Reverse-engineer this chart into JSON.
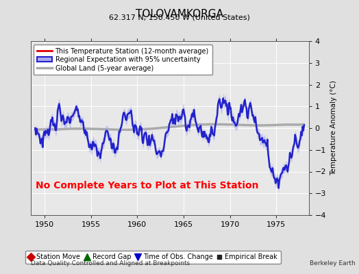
{
  "title": "TOLOVAMKORGA",
  "subtitle": "62.317 N, 150.450 W (United States)",
  "xlabel_bottom": "Data Quality Controlled and Aligned at Breakpoints",
  "xlabel_right": "Berkeley Earth",
  "ylabel": "Temperature Anomaly (°C)",
  "xlim": [
    1948.5,
    1978.5
  ],
  "ylim": [
    -4,
    4
  ],
  "xticks": [
    1950,
    1955,
    1960,
    1965,
    1970,
    1975
  ],
  "yticks": [
    -4,
    -3,
    -2,
    -1,
    0,
    1,
    2,
    3,
    4
  ],
  "no_data_text": "No Complete Years to Plot at This Station",
  "legend_entries": [
    {
      "label": "This Temperature Station (12-month average)",
      "color": "#dd0000",
      "lw": 1.5
    },
    {
      "label": "Regional Expectation with 95% uncertainty",
      "color": "#2222cc",
      "lw": 1.8
    },
    {
      "label": "Global Land (5-year average)",
      "color": "#aaaaaa",
      "lw": 2.5
    }
  ],
  "uncertainty_color": "#aaaaee",
  "uncertainty_alpha": 0.6,
  "bottom_legend": [
    {
      "marker": "D",
      "color": "#cc0000",
      "label": "Station Move",
      "ms": 6
    },
    {
      "marker": "^",
      "color": "#006600",
      "label": "Record Gap",
      "ms": 7
    },
    {
      "marker": "v",
      "color": "#0000cc",
      "label": "Time of Obs. Change",
      "ms": 7
    },
    {
      "marker": "s",
      "color": "#222222",
      "label": "Empirical Break",
      "ms": 5
    }
  ],
  "background_color": "#e0e0e0",
  "plot_bg_color": "#e8e8e8",
  "grid_color": "#ffffff",
  "seed": 12345,
  "n_years": 30
}
